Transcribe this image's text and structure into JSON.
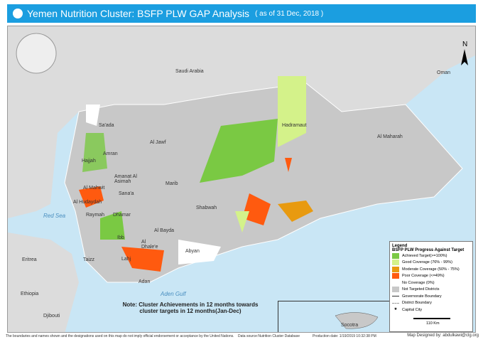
{
  "header": {
    "title": "Yemen Nutrition Cluster: BSFP PLW GAP Analysis",
    "subtitle": "( as of 31 Dec, 2018 )"
  },
  "colors": {
    "header": "#1b9ee0",
    "sea": "#c9e6f5",
    "not_targeted": "#c8c8c8",
    "achieved": "#7ac943",
    "good": "#d4f28a",
    "moderate": "#e89a10",
    "poor": "#ff5a0f",
    "no_coverage": "#ffffff"
  },
  "map": {
    "countries": [
      "Saudi Arabia",
      "Oman",
      "Eritrea",
      "Ethiopia",
      "Djibouti"
    ],
    "seas": [
      "Red Sea",
      "Aden Gulf"
    ],
    "governorates": [
      "Sa'ada",
      "Al Jawf",
      "Hadramaut",
      "Al Maharah",
      "Amran",
      "Hajjah",
      "Amanat Al Asimah",
      "Sana'a",
      "Marib",
      "Al Mahwit",
      "Al Hudaydah",
      "Raymah",
      "Dhamar",
      "Shabwah",
      "Ibb",
      "Al Bayda",
      "Al Dhale'e",
      "Abyan",
      "Taizz",
      "Lahj",
      "Adan",
      "Socotra"
    ],
    "north_arrow": "N"
  },
  "legend": {
    "title": "Legend",
    "subtitle": "BSFP PLW Progress Against Target",
    "items": [
      {
        "label": "Achieved Target(>=100%)",
        "color": "#7ac943"
      },
      {
        "label": "Good Coverage (76% - 99%)",
        "color": "#d4f28a"
      },
      {
        "label": "Moderate Coverage (50% - 75%)",
        "color": "#e89a10"
      },
      {
        "label": "Poor Coverage (<=49%)",
        "color": "#ff5a0f"
      },
      {
        "label": "No Coverage (0%)",
        "color": "#ffffff"
      },
      {
        "label": "Not Targeted Districts",
        "color": "#c8c8c8"
      }
    ],
    "gov_boundary": "Governorate Boundary",
    "district_boundary": "District Boundary",
    "capital": "Capital City",
    "scale": "110 Km"
  },
  "note": "Note: Cluster Achievements in 12 months towards cluster targets in 12 months(Jan-Dec)",
  "footer": {
    "disclaimer": "The boundaries and names shown and the designations used on this map do not imply official endorsement or acceptance by the United Nations.",
    "source": "Data source:Nutrition Cluster Database",
    "date": "Production date: 1/19/2019 10:32:38 PM",
    "designer": "Map Designed by: abdulkawi@clg.org"
  }
}
